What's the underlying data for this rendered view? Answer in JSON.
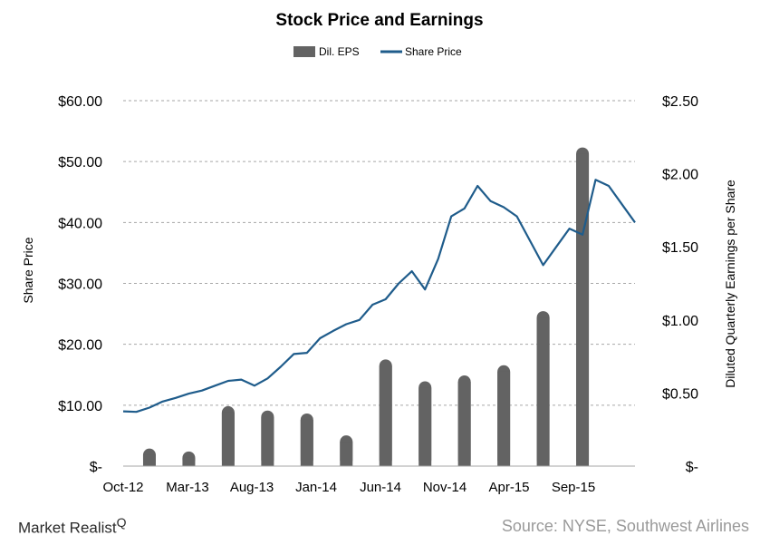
{
  "chart_data": {
    "type": "bar+line",
    "title": "Stock Price and Earnings",
    "legend": {
      "placement": "top-center",
      "items": [
        "Dil. EPS",
        "Share Price"
      ]
    },
    "colors": {
      "eps_bar": "#636363",
      "price_line": "#1f5c8b",
      "grid": "#a6a6a6"
    },
    "x_ticks": [
      "Oct-12",
      "Mar-13",
      "Aug-13",
      "Jan-14",
      "Jun-14",
      "Nov-14",
      "Apr-15",
      "Sep-15"
    ],
    "x_range": [
      "2012-10",
      "2016-01"
    ],
    "left_axis": {
      "label": "Share Price",
      "ylim": [
        0,
        60
      ],
      "tick_values": [
        0,
        10,
        20,
        30,
        40,
        50,
        60
      ],
      "tick_labels": [
        "$-",
        "$10.00",
        "$20.00",
        "$30.00",
        "$40.00",
        "$50.00",
        "$60.00"
      ],
      "grid": true
    },
    "right_axis": {
      "label": "Diluted Quarterly Earnings per Share",
      "ylim": [
        0,
        2.5
      ],
      "tick_values": [
        0,
        0.5,
        1.0,
        1.5,
        2.0,
        2.5
      ],
      "tick_labels": [
        "$-",
        "$0.50",
        "$1.00",
        "$1.50",
        "$2.00",
        "$2.50"
      ]
    },
    "eps_series": {
      "name": "Dil. EPS",
      "x": [
        "2012-12",
        "2013-03",
        "2013-06",
        "2013-09",
        "2013-12",
        "2014-03",
        "2014-06",
        "2014-09",
        "2014-12",
        "2015-03",
        "2015-06",
        "2015-09"
      ],
      "values": [
        0.12,
        0.1,
        0.41,
        0.38,
        0.36,
        0.21,
        0.73,
        0.58,
        0.62,
        0.69,
        1.06,
        2.18
      ]
    },
    "price_series": {
      "name": "Share Price",
      "points": [
        [
          "2012-10",
          9.0
        ],
        [
          "2012-11",
          8.9
        ],
        [
          "2012-12",
          9.6
        ],
        [
          "2013-01",
          10.6
        ],
        [
          "2013-02",
          11.2
        ],
        [
          "2013-03",
          11.9
        ],
        [
          "2013-04",
          12.4
        ],
        [
          "2013-05",
          13.2
        ],
        [
          "2013-06",
          14.0
        ],
        [
          "2013-07",
          14.2
        ],
        [
          "2013-08",
          13.2
        ],
        [
          "2013-09",
          14.4
        ],
        [
          "2013-10",
          16.3
        ],
        [
          "2013-11",
          18.4
        ],
        [
          "2013-12",
          18.6
        ],
        [
          "2014-01",
          21.0
        ],
        [
          "2014-02",
          22.2
        ],
        [
          "2014-03",
          23.3
        ],
        [
          "2014-04",
          24.0
        ],
        [
          "2014-05",
          26.5
        ],
        [
          "2014-06",
          27.4
        ],
        [
          "2014-07",
          30.0
        ],
        [
          "2014-08",
          32.0
        ],
        [
          "2014-09",
          29.0
        ],
        [
          "2014-10",
          34.0
        ],
        [
          "2014-11",
          41.0
        ],
        [
          "2014-12",
          42.3
        ],
        [
          "2015-01",
          46.0
        ],
        [
          "2015-02",
          43.5
        ],
        [
          "2015-03",
          42.5
        ],
        [
          "2015-04",
          41.0
        ],
        [
          "2015-05",
          37.0
        ],
        [
          "2015-06",
          33.0
        ],
        [
          "2015-07",
          36.0
        ],
        [
          "2015-08",
          39.0
        ],
        [
          "2015-09",
          38.0
        ],
        [
          "2015-10",
          47.0
        ],
        [
          "2015-11",
          46.0
        ],
        [
          "2015-12",
          43.0
        ],
        [
          "2016-01",
          40.0
        ]
      ]
    }
  },
  "footer": {
    "brand": "Market Realist",
    "brand_mark": "Q",
    "source": "Source: NYSE, Southwest Airlines"
  }
}
